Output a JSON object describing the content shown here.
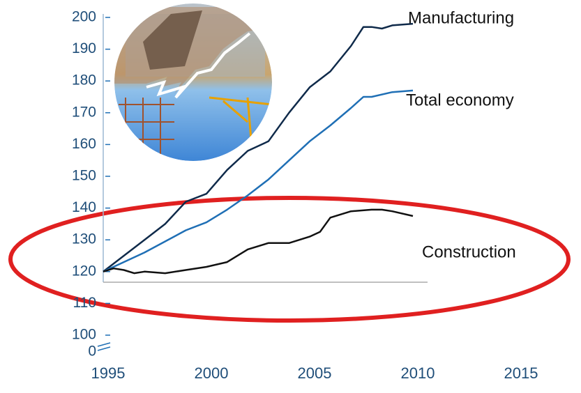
{
  "chart_data": {
    "type": "line",
    "ylim": [
      100,
      200
    ],
    "yticks": [
      0,
      100,
      110,
      120,
      130,
      140,
      150,
      160,
      170,
      180,
      190,
      200
    ],
    "axis_break": true,
    "xlim": [
      1995,
      2015
    ],
    "xticks": [
      1995,
      2000,
      2005,
      2010,
      2015
    ],
    "series": [
      {
        "name": "Manufacturing",
        "color": "#0f2a4a",
        "x": [
          1995,
          1996,
          1997,
          1998,
          1999,
          2000,
          2001,
          2002,
          2003,
          2004,
          2005,
          2006,
          2007,
          2007.6,
          2008,
          2008.5,
          2009,
          2010
        ],
        "values": [
          120,
          125,
          130,
          135,
          142,
          144.5,
          152,
          158,
          161,
          170,
          178,
          183,
          191,
          197,
          197,
          196.5,
          197.5,
          198
        ]
      },
      {
        "name": "Total economy",
        "color": "#1f6fb5",
        "x": [
          1995,
          1997,
          1999,
          2000,
          2001,
          2002,
          2003,
          2004,
          2005,
          2006,
          2007,
          2007.6,
          2008,
          2009,
          2010
        ],
        "values": [
          120,
          126,
          133,
          135.5,
          139.5,
          144,
          149,
          155,
          161,
          166,
          171.5,
          175,
          175,
          176.5,
          177
        ]
      },
      {
        "name": "Construction",
        "color": "#111111",
        "x": [
          1995,
          1995.5,
          1996,
          1996.5,
          1997,
          1998,
          1999,
          2000,
          2001,
          2002,
          2003,
          2004,
          2005,
          2005.5,
          2006,
          2007,
          2008,
          2008.5,
          2009,
          2010
        ],
        "values": [
          120,
          121,
          120.5,
          119.5,
          120,
          119.5,
          120.5,
          121.5,
          123,
          127,
          129,
          129,
          131,
          132.5,
          137,
          139,
          139.5,
          139.5,
          139,
          137.5
        ]
      }
    ]
  }
}
